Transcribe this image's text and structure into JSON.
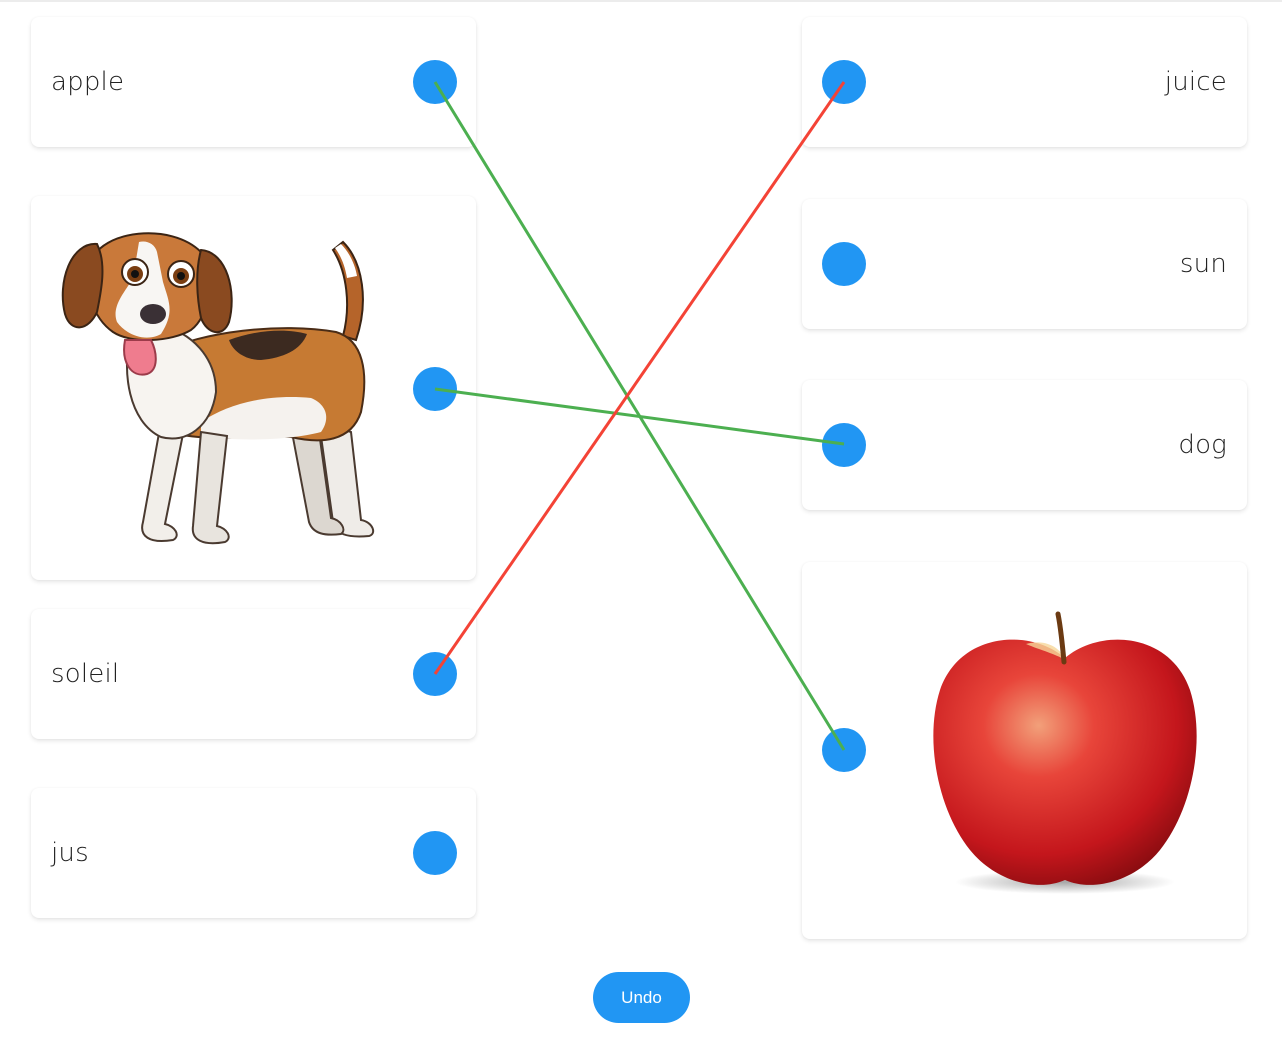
{
  "colors": {
    "dot": "#2196f3",
    "correct_link": "#4caf50",
    "wrong_link": "#f44336",
    "undo_button": "#2196f3"
  },
  "left_items": [
    {
      "kind": "text",
      "label": "apple"
    },
    {
      "kind": "image",
      "icon": "dog-image"
    },
    {
      "kind": "text",
      "label": "soleil"
    },
    {
      "kind": "text",
      "label": "jus"
    }
  ],
  "right_items": [
    {
      "kind": "text",
      "label": "juice"
    },
    {
      "kind": "text",
      "label": "sun"
    },
    {
      "kind": "text",
      "label": "dog"
    },
    {
      "kind": "image",
      "icon": "apple-image"
    }
  ],
  "connections": [
    {
      "from_left": 0,
      "to_right": 3,
      "status": "correct"
    },
    {
      "from_left": 1,
      "to_right": 2,
      "status": "correct"
    },
    {
      "from_left": 2,
      "to_right": 0,
      "status": "wrong"
    }
  ],
  "undo_label": "Undo"
}
